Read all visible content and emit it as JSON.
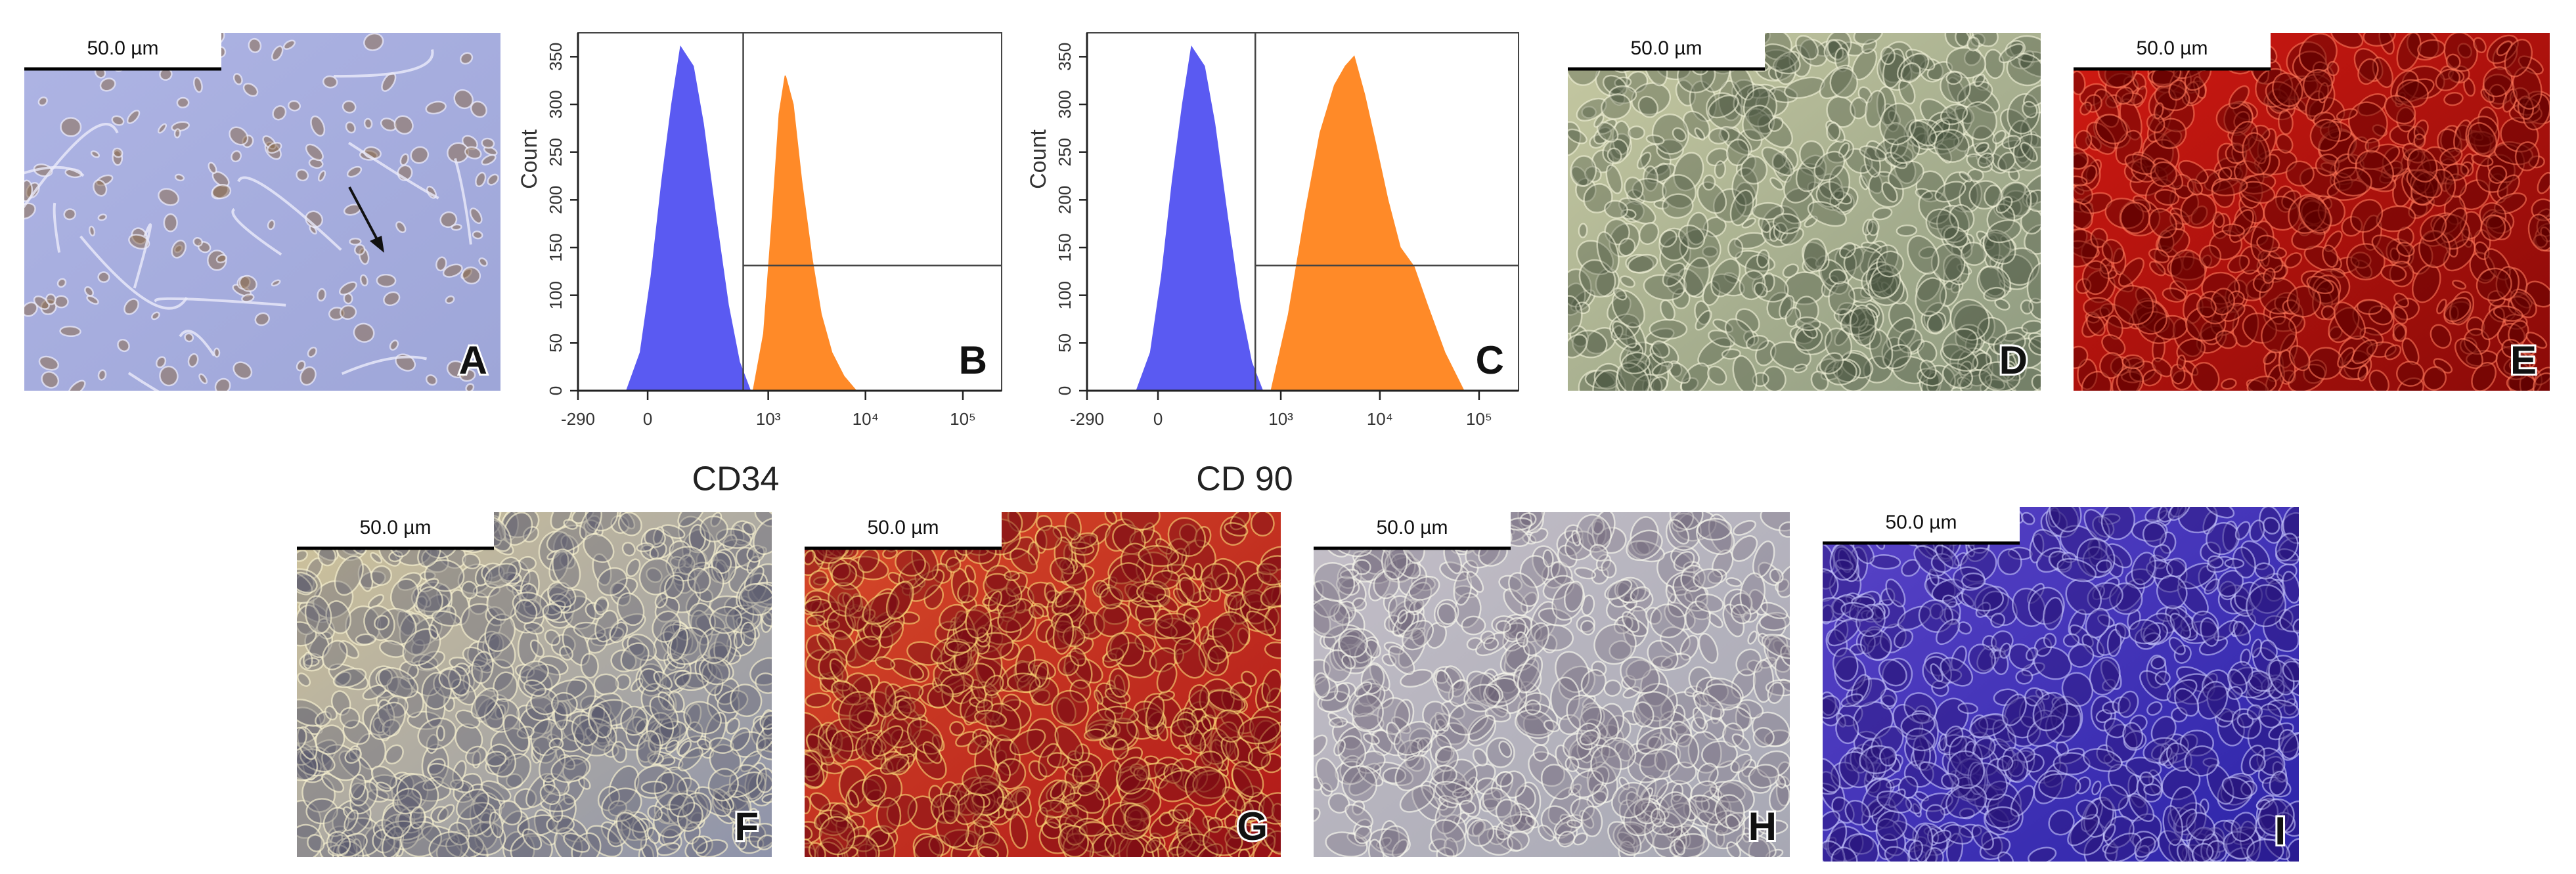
{
  "panels": [
    {
      "label": "A",
      "scale_bar": "50.0 µm"
    },
    {
      "label": "D",
      "scale_bar": "50.0 µm"
    },
    {
      "label": "E",
      "scale_bar": "50.0 µm"
    },
    {
      "label": "F",
      "scale_bar": "50.0 µm"
    },
    {
      "label": "G",
      "scale_bar": "50.0 µm"
    },
    {
      "label": "H",
      "scale_bar": "50.0 µm"
    },
    {
      "label": "I",
      "scale_bar": "50.0 µm"
    }
  ],
  "chart_data": [
    {
      "type": "area",
      "panel_label": "B",
      "x_label": "CD34",
      "y_label": "Count",
      "x_scale": "biexponential",
      "xlim": [
        -290,
        250000
      ],
      "xticks": [
        -290,
        0,
        {
          "value": 1000,
          "label": "10³"
        },
        {
          "value": 10000,
          "label": "10⁴"
        },
        {
          "value": 100000,
          "label": "10⁵"
        }
      ],
      "ylim": [
        0,
        375
      ],
      "yticks": [
        0,
        50,
        100,
        150,
        200,
        250,
        300,
        350
      ],
      "series": [
        {
          "color": "#5a5af2",
          "x": [
            -60,
            -20,
            10,
            40,
            70,
            100,
            150,
            200,
            280,
            380,
            500,
            650
          ],
          "values": [
            0,
            40,
            120,
            220,
            300,
            360,
            340,
            280,
            180,
            90,
            30,
            0
          ]
        },
        {
          "color": "#ff8a28",
          "x": [
            700,
            900,
            1100,
            1300,
            1500,
            1800,
            2200,
            2800,
            3500,
            4500,
            6000,
            8000
          ],
          "values": [
            0,
            60,
            180,
            290,
            330,
            300,
            220,
            140,
            80,
            40,
            15,
            0
          ]
        }
      ]
    },
    {
      "type": "area",
      "panel_label": "C",
      "x_label": "CD 90",
      "y_label": "Count",
      "x_scale": "biexponential",
      "xlim": [
        -290,
        250000
      ],
      "xticks": [
        -290,
        0,
        {
          "value": 1000,
          "label": "10³"
        },
        {
          "value": 10000,
          "label": "10⁴"
        },
        {
          "value": 100000,
          "label": "10⁵"
        }
      ],
      "ylim": [
        0,
        375
      ],
      "yticks": [
        0,
        50,
        100,
        150,
        200,
        250,
        300,
        350
      ],
      "series": [
        {
          "color": "#5a5af2",
          "x": [
            -60,
            -20,
            10,
            40,
            70,
            100,
            150,
            200,
            280,
            380,
            500,
            650
          ],
          "values": [
            0,
            40,
            120,
            220,
            300,
            360,
            340,
            280,
            180,
            90,
            30,
            0
          ]
        },
        {
          "color": "#ff8a28",
          "x": [
            800,
            1200,
            1800,
            2500,
            3500,
            4500,
            5500,
            7000,
            9000,
            12000,
            16000,
            22000,
            30000,
            45000,
            70000
          ],
          "values": [
            0,
            80,
            190,
            270,
            320,
            340,
            350,
            310,
            260,
            200,
            150,
            130,
            90,
            40,
            0
          ]
        }
      ]
    }
  ]
}
